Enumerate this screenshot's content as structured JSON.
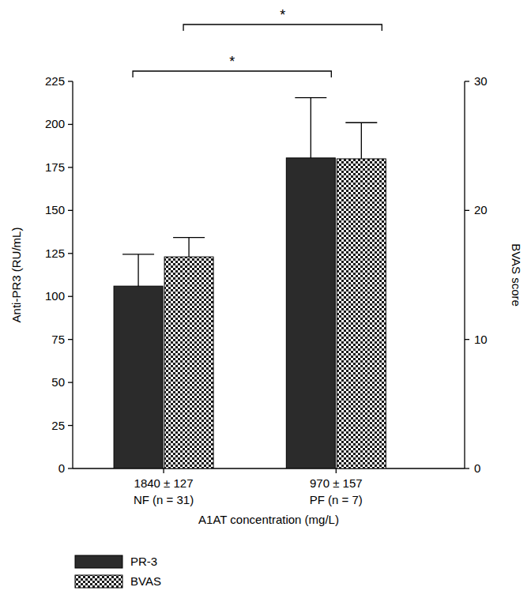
{
  "chart_data": {
    "type": "bar",
    "categories": [
      "1840 ± 127\nNF (n = 31)",
      "970 ± 157\nPF (n = 7)"
    ],
    "xlabel": "A1AT concentration (mg/L)",
    "ylabel": "Anti-PR3 (RU/mL)",
    "y2label": "BVAS score",
    "series": [
      {
        "name": "PR-3",
        "color": "#2b2b2b",
        "values": [
          106,
          180.5
        ],
        "errors": [
          18.5,
          35
        ]
      },
      {
        "name": "BVAS",
        "color": "#1a1a1a",
        "axis": "y2",
        "values": [
          16.4,
          24.0
        ],
        "errors": [
          1.5,
          2.8
        ]
      }
    ],
    "ylim": [
      0,
      225
    ],
    "yticks": [
      0,
      25,
      50,
      75,
      100,
      125,
      150,
      175,
      200,
      225
    ],
    "y2lim": [
      0,
      30
    ],
    "y2ticks": [
      0,
      10,
      20,
      30
    ],
    "legend": "bottom-left",
    "annotations": [
      {
        "text": "*",
        "series": 0
      },
      {
        "text": "*",
        "series": 1
      }
    ]
  }
}
